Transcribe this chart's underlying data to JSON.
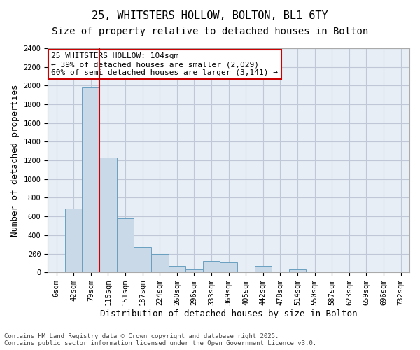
{
  "title1": "25, WHITSTERS HOLLOW, BOLTON, BL1 6TY",
  "title2": "Size of property relative to detached houses in Bolton",
  "xlabel": "Distribution of detached houses by size in Bolton",
  "ylabel": "Number of detached properties",
  "bin_labels": [
    "6sqm",
    "42sqm",
    "79sqm",
    "115sqm",
    "151sqm",
    "187sqm",
    "224sqm",
    "260sqm",
    "296sqm",
    "333sqm",
    "369sqm",
    "405sqm",
    "442sqm",
    "478sqm",
    "514sqm",
    "550sqm",
    "587sqm",
    "623sqm",
    "659sqm",
    "696sqm",
    "732sqm"
  ],
  "bar_values": [
    5,
    680,
    1980,
    1230,
    580,
    270,
    200,
    70,
    30,
    120,
    110,
    0,
    70,
    0,
    30,
    0,
    0,
    0,
    0,
    0,
    0
  ],
  "bar_color": "#c9d9e8",
  "bar_edge_color": "#6a9fc0",
  "grid_color": "#c0c8d8",
  "background_color": "#e8eef5",
  "vline_color": "#cc0000",
  "annotation_text": "25 WHITSTERS HOLLOW: 104sqm\n← 39% of detached houses are smaller (2,029)\n60% of semi-detached houses are larger (3,141) →",
  "annotation_box_color": "#cc0000",
  "ylim": [
    0,
    2400
  ],
  "yticks": [
    0,
    200,
    400,
    600,
    800,
    1000,
    1200,
    1400,
    1600,
    1800,
    2000,
    2200,
    2400
  ],
  "footer_text": "Contains HM Land Registry data © Crown copyright and database right 2025.\nContains public sector information licensed under the Open Government Licence v3.0.",
  "title1_fontsize": 11,
  "title2_fontsize": 10,
  "xlabel_fontsize": 9,
  "ylabel_fontsize": 9,
  "tick_fontsize": 7.5,
  "annotation_fontsize": 8,
  "footer_fontsize": 6.5
}
